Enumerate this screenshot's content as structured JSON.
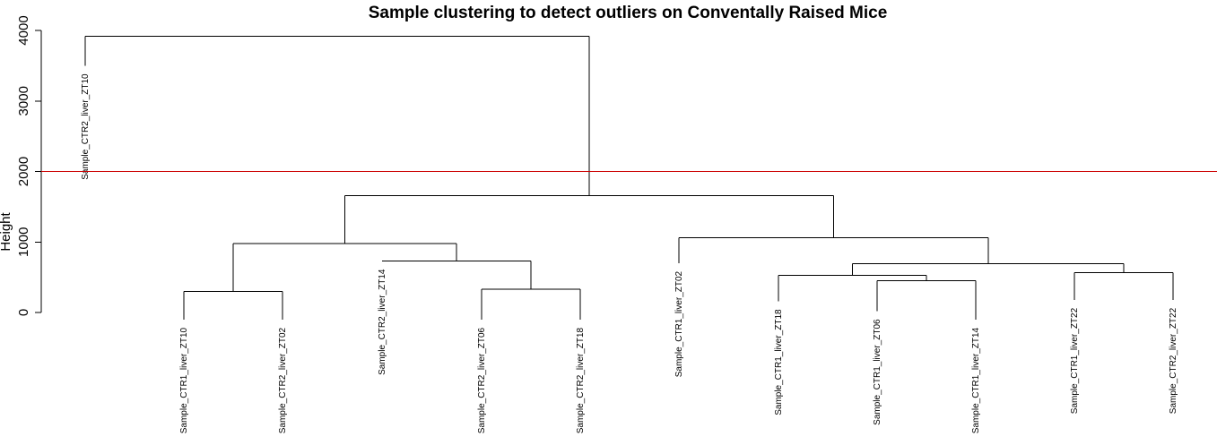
{
  "chart_data": {
    "type": "dendrogram",
    "title": "Sample clustering to detect outliers on Conventally Raised Mice",
    "ylabel": "Height",
    "xlabel": "",
    "ylim": [
      0,
      4000
    ],
    "yticks": [
      0,
      1000,
      2000,
      3000,
      4000
    ],
    "cut_line": {
      "height": 2000,
      "color": "#cc0000"
    },
    "line_color": "#000000",
    "leaves": [
      {
        "id": "L1",
        "label": "Sample_CTR2_liver_ZT10",
        "height": 3500
      },
      {
        "id": "L2",
        "label": "Sample_CTR1_liver_ZT10",
        "height": -100
      },
      {
        "id": "L3",
        "label": "Sample_CTR2_liver_ZT02",
        "height": -100
      },
      {
        "id": "L4",
        "label": "Sample_CTR2_liver_ZT14",
        "height": 730
      },
      {
        "id": "L5",
        "label": "Sample_CTR2_liver_ZT06",
        "height": -100
      },
      {
        "id": "L6",
        "label": "Sample_CTR2_liver_ZT18",
        "height": -100
      },
      {
        "id": "L7",
        "label": "Sample_CTR1_liver_ZT02",
        "height": 700
      },
      {
        "id": "L8",
        "label": "Sample_CTR1_liver_ZT18",
        "height": 160
      },
      {
        "id": "L9",
        "label": "Sample_CTR1_liver_ZT06",
        "height": 20
      },
      {
        "id": "L10",
        "label": "Sample_CTR1_liver_ZT14",
        "height": -100
      },
      {
        "id": "L11",
        "label": "Sample_CTR1_liver_ZT22",
        "height": 180
      },
      {
        "id": "L12",
        "label": "Sample_CTR2_liver_ZT22",
        "height": 180
      }
    ],
    "merges": [
      {
        "id": "M1",
        "left": "L2",
        "right": "L3",
        "height": 300
      },
      {
        "id": "M2",
        "left": "L5",
        "right": "L6",
        "height": 330
      },
      {
        "id": "M3",
        "left": "L4",
        "right": "M2",
        "height": 730
      },
      {
        "id": "M4",
        "left": "M1",
        "right": "M3",
        "height": 975
      },
      {
        "id": "M5",
        "left": "L9",
        "right": "L10",
        "height": 450
      },
      {
        "id": "M6",
        "left": "L8",
        "right": "M5",
        "height": 525
      },
      {
        "id": "M7",
        "left": "L11",
        "right": "L12",
        "height": 565
      },
      {
        "id": "M8",
        "left": "M6",
        "right": "M7",
        "height": 690
      },
      {
        "id": "M9",
        "left": "L7",
        "right": "M8",
        "height": 1060
      },
      {
        "id": "M10",
        "left": "M4",
        "right": "M9",
        "height": 1660
      },
      {
        "id": "M11",
        "left": "L1",
        "right": "M10",
        "height": 3920
      }
    ]
  }
}
